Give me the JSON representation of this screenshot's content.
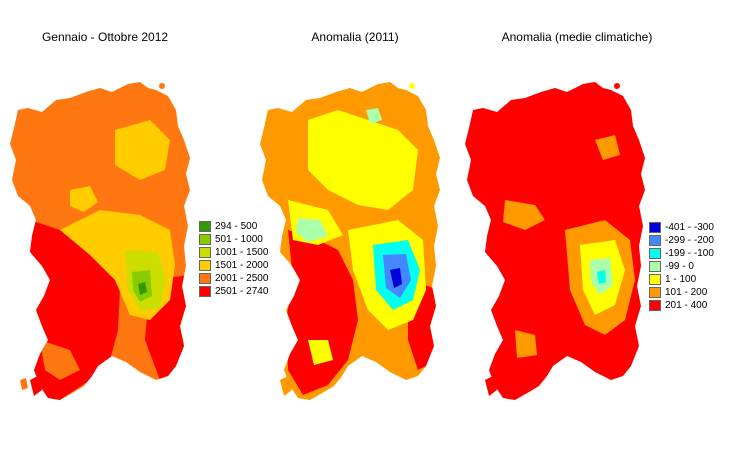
{
  "panels": [
    {
      "title": "Gennaio - Ottobre 2012",
      "map_id": "precipitation-2012"
    },
    {
      "title": "Anomalia (2011)",
      "map_id": "anomaly-2011"
    },
    {
      "title": "Anomalia (medie climatiche)",
      "map_id": "anomaly-climatic-mean"
    }
  ],
  "legend_precipitation": [
    {
      "label": "294 - 500",
      "color": "#339900"
    },
    {
      "label": "501 - 1000",
      "color": "#88cc00"
    },
    {
      "label": "1001 - 1500",
      "color": "#ccdd00"
    },
    {
      "label": "1501 - 2000",
      "color": "#ffcc00"
    },
    {
      "label": "2001 - 2500",
      "color": "#ff7711"
    },
    {
      "label": "2501 - 2740",
      "color": "#ff0000"
    }
  ],
  "legend_anomaly": [
    {
      "label": "-401 - -300",
      "color": "#0000dd"
    },
    {
      "label": "-299 - -200",
      "color": "#4488ff"
    },
    {
      "label": "-199 - -100",
      "color": "#00ffee"
    },
    {
      "label": "-99 - 0",
      "color": "#aaffaa"
    },
    {
      "label": "1 - 100",
      "color": "#ffff00"
    },
    {
      "label": "101 - 200",
      "color": "#ff9900"
    },
    {
      "label": "201 - 400",
      "color": "#ff0000"
    }
  ]
}
